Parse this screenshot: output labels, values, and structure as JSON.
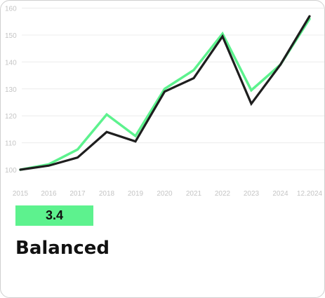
{
  "card": {
    "score": "3.4",
    "title": "Balanced"
  },
  "colors": {
    "accent": "#5df28e",
    "dark_line": "#1e1e1e",
    "grid": "#ececec",
    "tick_text": "#c4c4c4"
  },
  "chart_data": {
    "type": "line",
    "categories": [
      "2015",
      "2016",
      "2017",
      "2018",
      "2019",
      "2020",
      "2021",
      "2022",
      "2023",
      "2024",
      "12.2024"
    ],
    "y_ticks": [
      100,
      110,
      120,
      130,
      140,
      150,
      160
    ],
    "ylim": [
      97,
      160
    ],
    "grid": true,
    "legend": "none",
    "series": [
      {
        "color": "#5df28e",
        "values": [
          100,
          102,
          107.5,
          120.5,
          112.5,
          130,
          137,
          150.5,
          129.5,
          139,
          156
        ]
      },
      {
        "color": "#1e1e1e",
        "values": [
          100,
          101.5,
          104.5,
          114,
          110.5,
          129,
          134,
          149.5,
          124.5,
          139,
          157
        ]
      }
    ]
  }
}
